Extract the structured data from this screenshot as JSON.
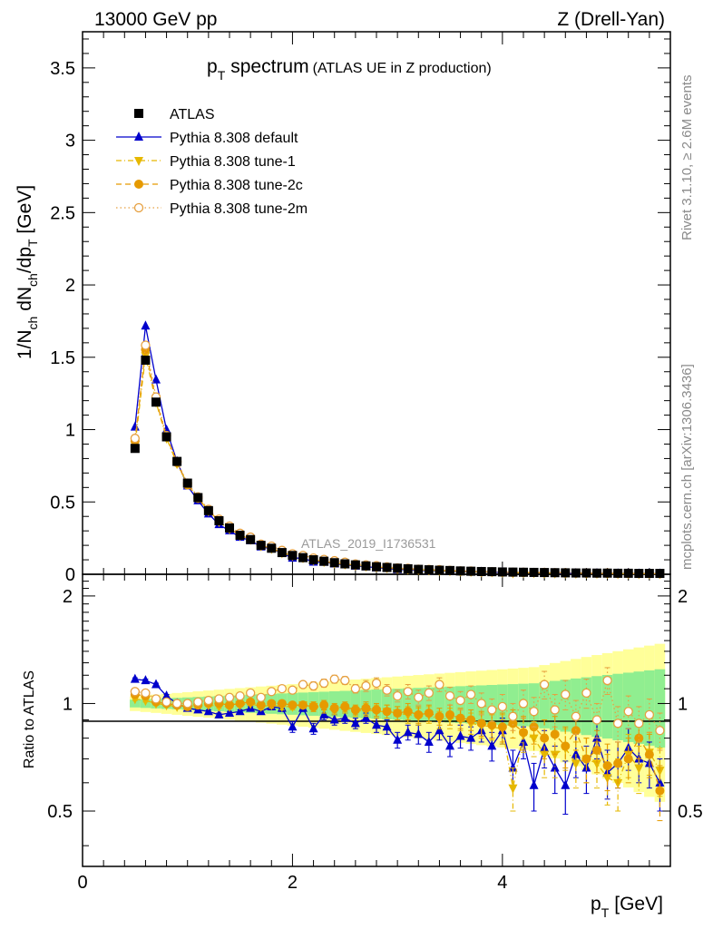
{
  "header": {
    "left": "13000 GeV pp",
    "right": "Z (Drell-Yan)"
  },
  "side_text": {
    "rivet": "Rivet 3.1.10, ≥ 2.6M events",
    "mcplots": "mcplots.cern.ch [arXiv:1306.3436]"
  },
  "colors": {
    "data": "#000000",
    "default": "#0000cc",
    "tune1": "#e6b800",
    "tune2c": "#e69a00",
    "tune2m": "#e6a040",
    "band_inner": "#90ee90",
    "band_outer": "#ffff99"
  },
  "chart_data": {
    "type": "scatter",
    "title_main": "p",
    "title_sub": "T",
    "title_main2": "spectrum",
    "title_extra": "(ATLAS UE in Z production)",
    "analysis_label": "ATLAS_2019_I1736531",
    "xlabel": "p",
    "xlabel_sub": "T",
    "xlabel_unit": "[GeV]",
    "ylabel_main": "1/N",
    "ylabel_sub1": "ch",
    "ylabel_mid": " dN",
    "ylabel_sub2": "ch",
    "ylabel_mid2": "/dp",
    "ylabel_sub3": "T",
    "ylabel_unit": " [GeV]",
    "ratio_ylabel": "Ratio to ATLAS",
    "xlim": [
      0,
      5.6
    ],
    "ylim": [
      0,
      3.75
    ],
    "ratio_ylim": [
      0.35,
      2.3
    ],
    "x_ticks": [
      "0",
      "2",
      "4"
    ],
    "y_ticks": [
      "0",
      "0.5",
      "1",
      "1.5",
      "2",
      "2.5",
      "3",
      "3.5"
    ],
    "ratio_ticks": [
      "0.5",
      "1",
      "2"
    ],
    "x": [
      0.5,
      0.6,
      0.7,
      0.8,
      0.9,
      1.0,
      1.1,
      1.2,
      1.3,
      1.4,
      1.5,
      1.6,
      1.7,
      1.8,
      1.9,
      2.0,
      2.1,
      2.2,
      2.3,
      2.4,
      2.5,
      2.6,
      2.7,
      2.8,
      2.9,
      3.0,
      3.1,
      3.2,
      3.3,
      3.4,
      3.5,
      3.6,
      3.7,
      3.8,
      3.9,
      4.0,
      4.1,
      4.2,
      4.3,
      4.4,
      4.5,
      4.6,
      4.7,
      4.8,
      4.9,
      5.0,
      5.1,
      5.2,
      5.3,
      5.4,
      5.5
    ],
    "atlas": [
      0.87,
      1.48,
      1.19,
      0.95,
      0.78,
      0.63,
      0.53,
      0.44,
      0.37,
      0.32,
      0.27,
      0.24,
      0.2,
      0.18,
      0.15,
      0.13,
      0.115,
      0.1,
      0.09,
      0.08,
      0.072,
      0.065,
      0.058,
      0.052,
      0.047,
      0.042,
      0.038,
      0.034,
      0.031,
      0.028,
      0.026,
      0.023,
      0.021,
      0.019,
      0.018,
      0.016,
      0.015,
      0.014,
      0.013,
      0.012,
      0.011,
      0.01,
      0.009,
      0.009,
      0.008,
      0.008,
      0.007,
      0.007,
      0.006,
      0.006,
      0.006
    ],
    "series": [
      {
        "name": "Pythia 8.308 default",
        "marker": "triangle-up",
        "line": "solid",
        "ratio": [
          1.17,
          1.16,
          1.13,
          1.05,
          1.0,
          0.97,
          0.96,
          0.95,
          0.93,
          0.94,
          0.95,
          0.97,
          0.95,
          0.98,
          0.97,
          0.86,
          0.97,
          0.85,
          0.93,
          0.9,
          0.91,
          0.88,
          0.91,
          0.87,
          0.86,
          0.79,
          0.83,
          0.82,
          0.78,
          0.84,
          0.76,
          0.81,
          0.8,
          0.84,
          0.76,
          0.84,
          0.66,
          0.78,
          0.59,
          0.75,
          0.66,
          0.59,
          0.72,
          0.66,
          0.8,
          0.64,
          0.68,
          0.75,
          0.7,
          0.68,
          0.6
        ],
        "errors": [
          0.01,
          0.01,
          0.01,
          0.01,
          0.01,
          0.01,
          0.01,
          0.01,
          0.01,
          0.01,
          0.01,
          0.01,
          0.01,
          0.02,
          0.02,
          0.03,
          0.02,
          0.03,
          0.03,
          0.03,
          0.03,
          0.03,
          0.03,
          0.04,
          0.04,
          0.04,
          0.04,
          0.05,
          0.05,
          0.05,
          0.05,
          0.06,
          0.06,
          0.06,
          0.07,
          0.07,
          0.08,
          0.08,
          0.09,
          0.09,
          0.1,
          0.1,
          0.1,
          0.1,
          0.1,
          0.1,
          0.1,
          0.1,
          0.1,
          0.1,
          0.1
        ]
      },
      {
        "name": "Pythia 8.308 tune-1",
        "marker": "triangle-down",
        "line": "dashdot",
        "ratio": [
          1.03,
          1.02,
          1.0,
          0.99,
          0.98,
          0.99,
          1.0,
          0.99,
          0.98,
          0.98,
          0.99,
          1.0,
          0.98,
          0.99,
          0.98,
          0.98,
          0.99,
          0.98,
          0.97,
          0.96,
          0.97,
          0.95,
          0.96,
          0.95,
          0.95,
          0.94,
          0.93,
          0.92,
          0.93,
          0.9,
          0.91,
          0.9,
          0.88,
          0.87,
          0.86,
          0.85,
          0.58,
          0.82,
          0.8,
          0.72,
          0.72,
          0.75,
          0.68,
          0.7,
          0.68,
          0.62,
          0.6,
          0.72,
          0.66,
          0.73,
          0.65
        ],
        "errors": [
          0.01,
          0.01,
          0.01,
          0.01,
          0.01,
          0.01,
          0.01,
          0.01,
          0.01,
          0.01,
          0.01,
          0.01,
          0.02,
          0.02,
          0.02,
          0.02,
          0.02,
          0.03,
          0.03,
          0.03,
          0.03,
          0.03,
          0.04,
          0.04,
          0.04,
          0.04,
          0.05,
          0.05,
          0.05,
          0.05,
          0.06,
          0.06,
          0.06,
          0.07,
          0.07,
          0.08,
          0.08,
          0.09,
          0.09,
          0.1,
          0.1,
          0.1,
          0.1,
          0.1,
          0.1,
          0.1,
          0.1,
          0.1,
          0.1,
          0.1,
          0.1
        ]
      },
      {
        "name": "Pythia 8.308 tune-2c",
        "marker": "circle-filled",
        "line": "dashed",
        "ratio": [
          1.06,
          1.05,
          1.01,
          1.0,
          0.99,
          0.98,
          0.99,
          1.0,
          1.0,
          0.99,
          1.0,
          1.01,
          0.99,
          1.0,
          1.0,
          0.99,
          0.99,
          0.98,
          0.99,
          0.97,
          0.98,
          0.96,
          0.97,
          0.96,
          0.95,
          0.94,
          0.95,
          0.93,
          0.94,
          0.92,
          0.93,
          0.91,
          0.9,
          0.88,
          0.87,
          0.86,
          0.88,
          0.83,
          0.86,
          0.8,
          0.82,
          0.76,
          0.84,
          0.7,
          0.74,
          0.67,
          0.68,
          0.7,
          0.8,
          0.72,
          0.57
        ],
        "errors": [
          0.01,
          0.01,
          0.01,
          0.01,
          0.01,
          0.01,
          0.01,
          0.01,
          0.01,
          0.01,
          0.01,
          0.01,
          0.02,
          0.02,
          0.02,
          0.02,
          0.02,
          0.03,
          0.03,
          0.03,
          0.03,
          0.03,
          0.04,
          0.04,
          0.04,
          0.04,
          0.05,
          0.05,
          0.05,
          0.05,
          0.06,
          0.06,
          0.06,
          0.07,
          0.07,
          0.08,
          0.08,
          0.09,
          0.09,
          0.1,
          0.1,
          0.1,
          0.1,
          0.1,
          0.1,
          0.1,
          0.1,
          0.1,
          0.1,
          0.1,
          0.1
        ]
      },
      {
        "name": "Pythia 8.308 tune-2m",
        "marker": "circle-open",
        "line": "dotted",
        "ratio": [
          1.08,
          1.07,
          1.03,
          1.01,
          1.0,
          1.0,
          1.01,
          1.02,
          1.03,
          1.04,
          1.05,
          1.07,
          1.04,
          1.08,
          1.1,
          1.09,
          1.13,
          1.12,
          1.14,
          1.17,
          1.16,
          1.1,
          1.12,
          1.14,
          1.09,
          1.05,
          1.08,
          1.04,
          1.07,
          1.13,
          1.05,
          1.02,
          1.06,
          1.0,
          0.96,
          0.98,
          0.92,
          1.0,
          0.95,
          1.13,
          0.96,
          1.06,
          0.92,
          1.07,
          0.9,
          1.16,
          0.88,
          0.95,
          0.88,
          0.93,
          0.84
        ],
        "errors": [
          0.01,
          0.01,
          0.01,
          0.01,
          0.01,
          0.01,
          0.01,
          0.01,
          0.01,
          0.01,
          0.01,
          0.01,
          0.02,
          0.02,
          0.02,
          0.02,
          0.02,
          0.03,
          0.03,
          0.03,
          0.03,
          0.03,
          0.04,
          0.04,
          0.04,
          0.04,
          0.05,
          0.05,
          0.05,
          0.05,
          0.06,
          0.06,
          0.06,
          0.07,
          0.07,
          0.08,
          0.08,
          0.09,
          0.09,
          0.1,
          0.1,
          0.1,
          0.1,
          0.1,
          0.1,
          0.1,
          0.1,
          0.1,
          0.1,
          0.1,
          0.1
        ]
      }
    ],
    "legend": [
      "ATLAS",
      "Pythia 8.308 default",
      "Pythia 8.308 tune-1",
      "Pythia 8.308 tune-2c",
      "Pythia 8.308 tune-2m"
    ],
    "legend_position": "top-left"
  }
}
